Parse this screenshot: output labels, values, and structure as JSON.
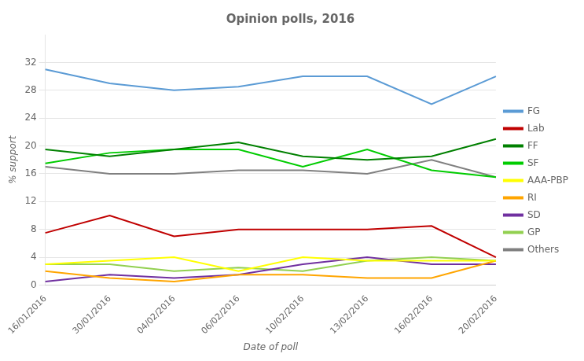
{
  "chart_data": {
    "type": "line",
    "title": "Opinion polls, 2016",
    "xlabel": "Date of poll",
    "ylabel": "% support",
    "categories": [
      "16/01/2016",
      "30/01/2016",
      "04/02/2016",
      "06/02/2016",
      "10/02/2016",
      "13/02/2016",
      "16/02/2016",
      "20/02/2016"
    ],
    "series": [
      {
        "name": "FG",
        "color": "#5b9bd5",
        "values": [
          31.0,
          29.0,
          28.0,
          28.5,
          30.0,
          30.0,
          26.0,
          30.0
        ]
      },
      {
        "name": "Lab",
        "color": "#c00000",
        "values": [
          7.5,
          10.0,
          7.0,
          8.0,
          8.0,
          8.0,
          8.5,
          4.0
        ]
      },
      {
        "name": "FF",
        "color": "#008000",
        "values": [
          19.5,
          18.5,
          19.5,
          20.5,
          18.5,
          18.0,
          18.5,
          21.0
        ]
      },
      {
        "name": "SF",
        "color": "#00cc00",
        "values": [
          17.5,
          19.0,
          19.5,
          19.5,
          17.0,
          19.5,
          16.5,
          15.5
        ]
      },
      {
        "name": "AAA-PBP",
        "color": "#ffff00",
        "values": [
          3.0,
          3.5,
          4.0,
          2.0,
          4.0,
          3.5,
          3.5,
          3.5
        ]
      },
      {
        "name": "RI",
        "color": "#ffa500",
        "values": [
          2.0,
          1.0,
          0.5,
          1.5,
          1.5,
          1.0,
          1.0,
          3.5
        ]
      },
      {
        "name": "SD",
        "color": "#7030a0",
        "values": [
          0.5,
          1.5,
          1.0,
          1.5,
          3.0,
          4.0,
          3.0,
          3.0
        ]
      },
      {
        "name": "GP",
        "color": "#92d050",
        "values": [
          3.0,
          3.0,
          2.0,
          2.5,
          2.0,
          3.5,
          4.0,
          3.5
        ]
      },
      {
        "name": "Others",
        "color": "#808080",
        "values": [
          17.0,
          16.0,
          16.0,
          16.5,
          16.5,
          16.0,
          18.0,
          15.5
        ]
      }
    ],
    "ylim": [
      0,
      36
    ],
    "yticks": [
      0,
      4,
      8,
      12,
      16,
      20,
      24,
      28,
      32
    ],
    "grid": true,
    "legend": "right"
  }
}
